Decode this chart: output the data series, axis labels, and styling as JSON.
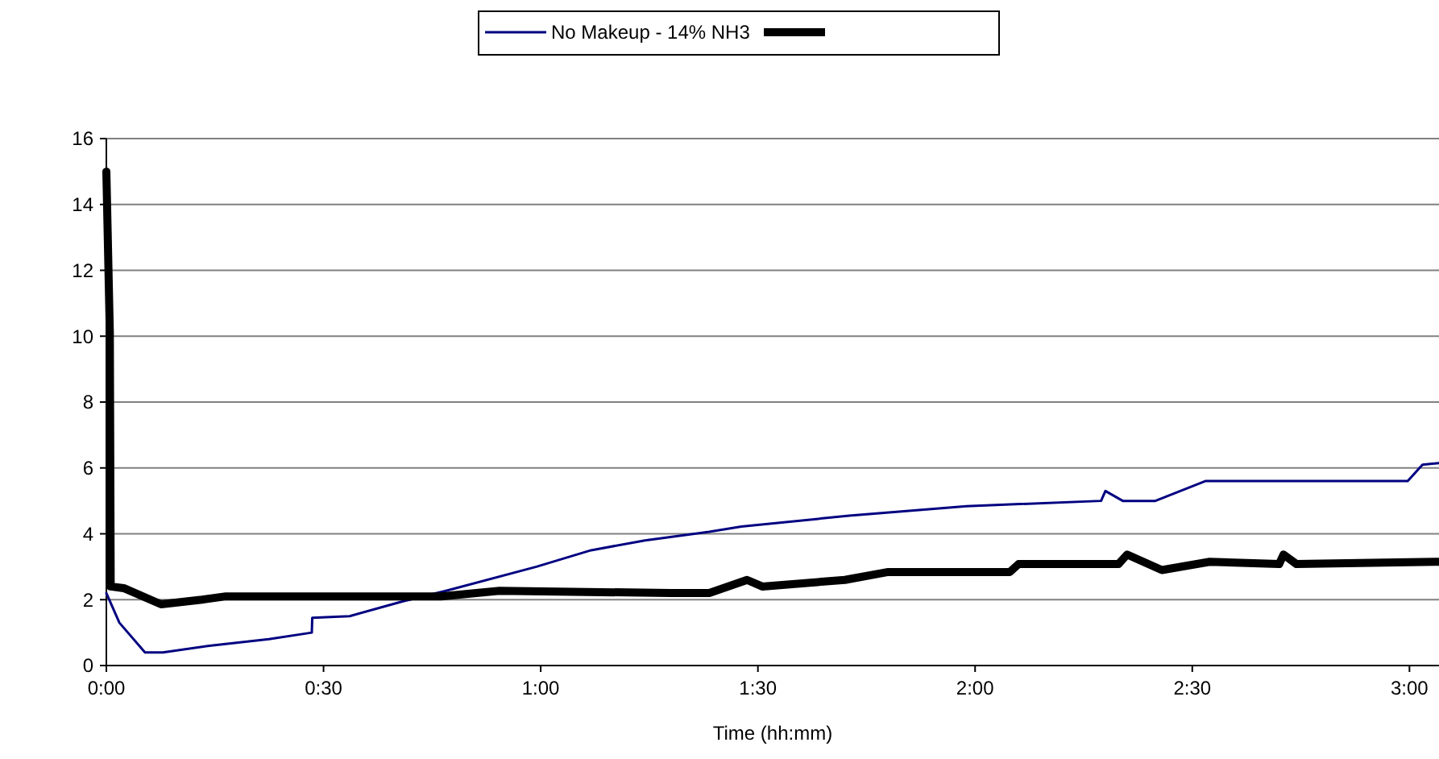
{
  "chart_data": {
    "type": "line",
    "xlabel": "Time (hh:mm)",
    "legend": "top",
    "grid": "y",
    "line_style": "solid",
    "marker": "none",
    "xlim": [
      0,
      3.068
    ],
    "xticks": [
      {
        "value": 0,
        "label": "0:00"
      },
      {
        "value": 0.5,
        "label": "0:30"
      },
      {
        "value": 1,
        "label": "1:00"
      },
      {
        "value": 1.5,
        "label": "1:30"
      },
      {
        "value": 2,
        "label": "2:00"
      },
      {
        "value": 2.5,
        "label": "2:30"
      },
      {
        "value": 3,
        "label": "3:00"
      }
    ],
    "ylim": [
      0,
      16
    ],
    "yticks": [
      0,
      2,
      4,
      6,
      8,
      10,
      12,
      14,
      16
    ],
    "series": [
      {
        "name": "No Makeup - 14% NH3",
        "color": "#000080",
        "x": [
          0,
          0.03,
          0.089,
          0.13,
          0.237,
          0.374,
          0.473,
          0.474,
          0.56,
          0.683,
          0.782,
          0.99,
          1.116,
          1.24,
          1.388,
          1.462,
          1.71,
          1.98,
          2.29,
          2.3,
          2.34,
          2.415,
          2.53,
          2.996,
          3.03,
          3.068
        ],
        "values": [
          2.2,
          1.3,
          0.4,
          0.4,
          0.6,
          0.8,
          1.0,
          1.45,
          1.5,
          1.95,
          2.27,
          3.0,
          3.5,
          3.8,
          4.06,
          4.22,
          4.55,
          4.84,
          5.0,
          5.3,
          5.0,
          5.0,
          5.6,
          5.6,
          6.1,
          6.15
        ]
      },
      {
        "color": "#000000",
        "x": [
          0,
          0.008,
          0.01,
          0.04,
          0.126,
          0.22,
          0.275,
          0.77,
          0.905,
          1.3,
          1.388,
          1.475,
          1.51,
          1.7,
          1.8,
          2.08,
          2.1,
          2.33,
          2.35,
          2.43,
          2.54,
          2.7,
          2.71,
          2.74,
          3.068
        ],
        "values": [
          15.0,
          10.1,
          2.4,
          2.35,
          1.86,
          2.0,
          2.1,
          2.1,
          2.27,
          2.2,
          2.2,
          2.6,
          2.4,
          2.6,
          2.84,
          2.84,
          3.08,
          3.08,
          3.37,
          2.9,
          3.15,
          3.08,
          3.37,
          3.08,
          3.15
        ]
      }
    ]
  }
}
